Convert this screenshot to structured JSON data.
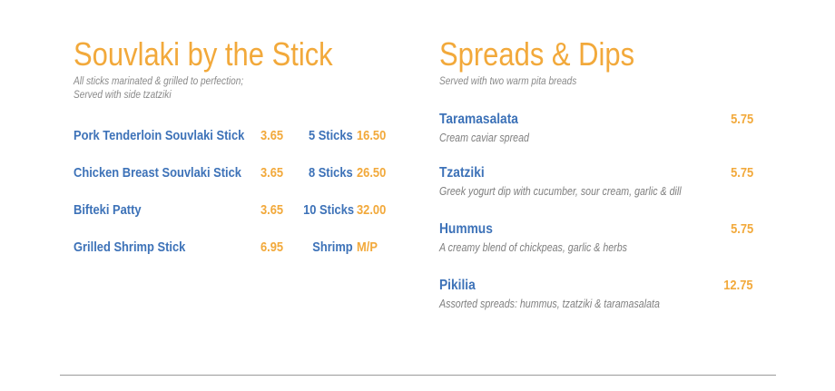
{
  "souvlaki": {
    "title": "Souvlaki by the Stick",
    "subtitle_line1": "All sticks marinated & grilled to perfection;",
    "subtitle_line2": "Served with side tzatziki",
    "items": [
      {
        "name": "Pork Tenderloin Souvlaki Stick",
        "price": "3.65",
        "qty": "5 Sticks",
        "qty_price": "16.50"
      },
      {
        "name": "Chicken Breast Souvlaki Stick",
        "price": "3.65",
        "qty": "8 Sticks",
        "qty_price": "26.50"
      },
      {
        "name": "Bifteki Patty",
        "price": "3.65",
        "qty": "10 Sticks",
        "qty_price": "32.00"
      },
      {
        "name": "Grilled Shrimp Stick",
        "price": "6.95",
        "qty": "Shrimp",
        "qty_price": "M/P"
      }
    ]
  },
  "spreads": {
    "title": "Spreads & Dips",
    "subtitle": "Served with two warm pita breads",
    "items": [
      {
        "name": "Taramasalata",
        "price": "5.75",
        "desc": "Cream caviar spread"
      },
      {
        "name": "Tzatziki",
        "price": "5.75",
        "desc": "Greek yogurt dip with cucumber, sour cream, garlic & dill"
      },
      {
        "name": "Hummus",
        "price": "5.75",
        "desc": "A creamy blend of chickpeas, garlic & herbs"
      },
      {
        "name": "Pikilia",
        "price": "12.75",
        "desc": "Assorted spreads: hummus, tzatziki & taramasalata"
      }
    ]
  },
  "colors": {
    "heading": "#f2a93b",
    "item_name": "#3d72b8",
    "price": "#f2a93b",
    "description": "#7f7f7f"
  }
}
